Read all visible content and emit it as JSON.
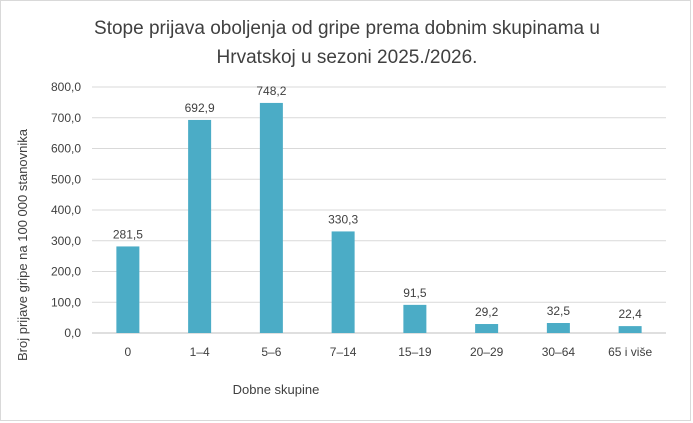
{
  "chart_data": {
    "type": "bar",
    "title": [
      "Stope prijava oboljenja od gripe prema dobnim skupinama u",
      "Hrvatskoj u sezoni 2025./2026."
    ],
    "xlabel": "Dobne skupine",
    "ylabel": "Broj prijave gripe na 100 000 stanovnika",
    "categories": [
      "0",
      "1–4",
      "5–6",
      "7–14",
      "15–19",
      "20–29",
      "30–64",
      "65 i više"
    ],
    "values": [
      281.5,
      692.9,
      748.2,
      330.3,
      91.5,
      29.2,
      32.5,
      22.4
    ],
    "data_labels": [
      "281,5",
      "692,9",
      "748,2",
      "330,3",
      "91,5",
      "29,2",
      "32,5",
      "22,4"
    ],
    "ylim": [
      0,
      800
    ],
    "yticks": [
      0,
      100,
      200,
      300,
      400,
      500,
      600,
      700,
      800
    ],
    "ytick_labels": [
      "0,0",
      "100,0",
      "200,0",
      "300,0",
      "400,0",
      "500,0",
      "600,0",
      "700,0",
      "800,0"
    ],
    "grid": true,
    "legend": "none",
    "bar_color": "#4bacc6"
  }
}
